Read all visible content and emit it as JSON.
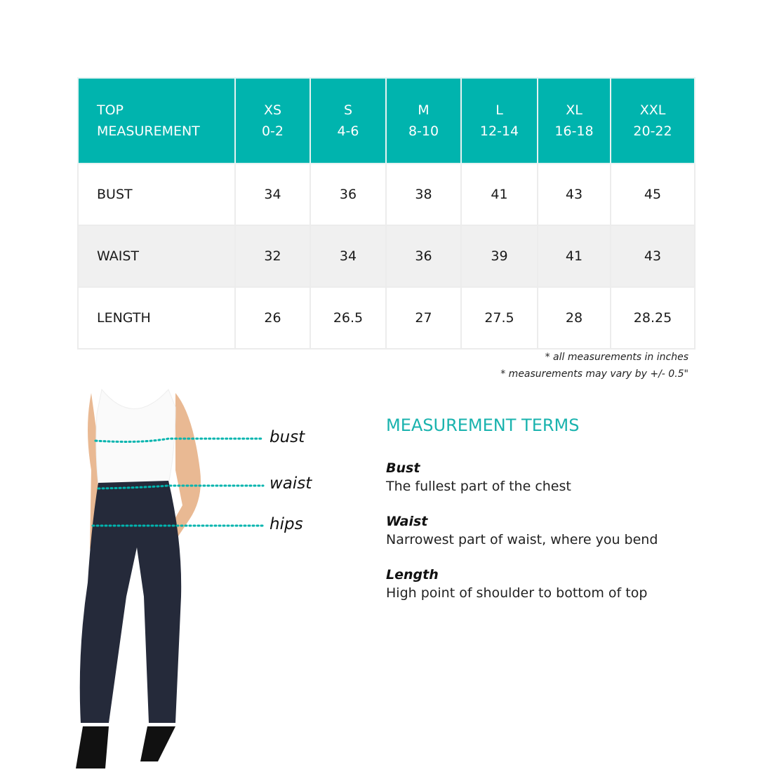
{
  "table": {
    "header": {
      "label_line1": "TOP",
      "label_line2": "MEASUREMENT",
      "sizes": [
        {
          "size": "XS",
          "range": "0-2"
        },
        {
          "size": "S",
          "range": "4-6"
        },
        {
          "size": "M",
          "range": "8-10"
        },
        {
          "size": "L",
          "range": "12-14"
        },
        {
          "size": "XL",
          "range": "16-18"
        },
        {
          "size": "XXL",
          "range": "20-22"
        }
      ]
    },
    "rows": [
      {
        "label": "BUST",
        "values": [
          "34",
          "36",
          "38",
          "41",
          "43",
          "45"
        ]
      },
      {
        "label": "WAIST",
        "values": [
          "32",
          "34",
          "36",
          "39",
          "41",
          "43"
        ]
      },
      {
        "label": "LENGTH",
        "values": [
          "26",
          "26.5",
          "27",
          "27.5",
          "28",
          "28.25"
        ]
      }
    ]
  },
  "notes": [
    "* all measurements in inches",
    "* measurements may vary by +/- 0.5\""
  ],
  "figure_labels": {
    "bust": "bust",
    "waist": "waist",
    "hips": "hips"
  },
  "terms": {
    "title": "MEASUREMENT TERMS",
    "items": [
      {
        "term": "Bust",
        "desc": "The fullest part of the chest"
      },
      {
        "term": "Waist",
        "desc": "Narrowest part of waist, where you bend"
      },
      {
        "term": "Length",
        "desc": "High point of shoulder to bottom of top"
      }
    ]
  },
  "colors": {
    "accent": "#00b4ae",
    "alt_row": "#f0f0f0"
  }
}
